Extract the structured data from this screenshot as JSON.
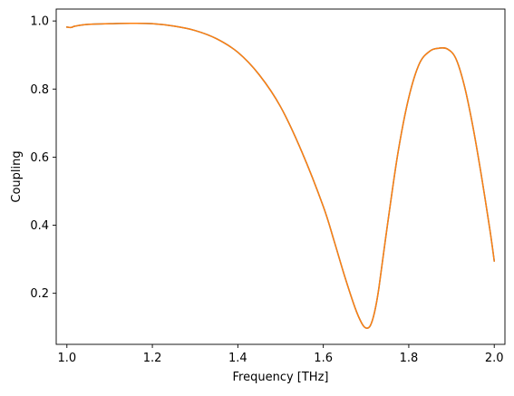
{
  "chart_data": {
    "type": "line",
    "title": "",
    "xlabel": "Frequency [THz]",
    "ylabel": "Coupling",
    "xlim": [
      0.975,
      2.025
    ],
    "ylim": [
      0.05,
      1.035
    ],
    "xticks": [
      1.0,
      1.2,
      1.4,
      1.6,
      1.8,
      2.0
    ],
    "xtick_labels": [
      "1.0",
      "1.2",
      "1.4",
      "1.6",
      "1.8",
      "2.0"
    ],
    "yticks": [
      0.2,
      0.4,
      0.6,
      0.8,
      1.0
    ],
    "ytick_labels": [
      "0.2",
      "0.4",
      "0.6",
      "0.8",
      "1.0"
    ],
    "grid": false,
    "legend": false,
    "series": [
      {
        "color": "#1f77b4",
        "x": [
          1.0,
          1.01,
          1.02,
          1.05,
          1.1,
          1.15,
          1.2,
          1.25,
          1.3,
          1.35,
          1.4,
          1.45,
          1.5,
          1.55,
          1.6,
          1.625,
          1.65,
          1.675,
          1.69,
          1.7,
          1.71,
          1.72,
          1.73,
          1.75,
          1.775,
          1.8,
          1.825,
          1.85,
          1.87,
          1.89,
          1.91,
          1.93,
          1.95,
          1.97,
          1.99,
          2.0
        ],
        "y": [
          0.982,
          0.981,
          0.985,
          0.99,
          0.992,
          0.993,
          0.992,
          0.985,
          0.972,
          0.948,
          0.908,
          0.842,
          0.748,
          0.615,
          0.455,
          0.355,
          0.25,
          0.155,
          0.112,
          0.098,
          0.105,
          0.145,
          0.215,
          0.4,
          0.615,
          0.775,
          0.875,
          0.912,
          0.92,
          0.918,
          0.89,
          0.81,
          0.69,
          0.545,
          0.385,
          0.295
        ]
      },
      {
        "color": "#ff7f0e",
        "x": [
          1.0,
          1.01,
          1.02,
          1.05,
          1.1,
          1.15,
          1.2,
          1.25,
          1.3,
          1.35,
          1.4,
          1.45,
          1.5,
          1.55,
          1.6,
          1.625,
          1.65,
          1.675,
          1.69,
          1.7,
          1.71,
          1.72,
          1.73,
          1.75,
          1.775,
          1.8,
          1.825,
          1.85,
          1.87,
          1.89,
          1.91,
          1.93,
          1.95,
          1.97,
          1.99,
          2.0
        ],
        "y": [
          0.982,
          0.981,
          0.985,
          0.99,
          0.992,
          0.993,
          0.992,
          0.985,
          0.972,
          0.948,
          0.908,
          0.842,
          0.748,
          0.615,
          0.455,
          0.355,
          0.25,
          0.155,
          0.112,
          0.098,
          0.105,
          0.145,
          0.215,
          0.4,
          0.615,
          0.775,
          0.875,
          0.912,
          0.92,
          0.918,
          0.89,
          0.81,
          0.69,
          0.545,
          0.385,
          0.295
        ]
      }
    ]
  }
}
